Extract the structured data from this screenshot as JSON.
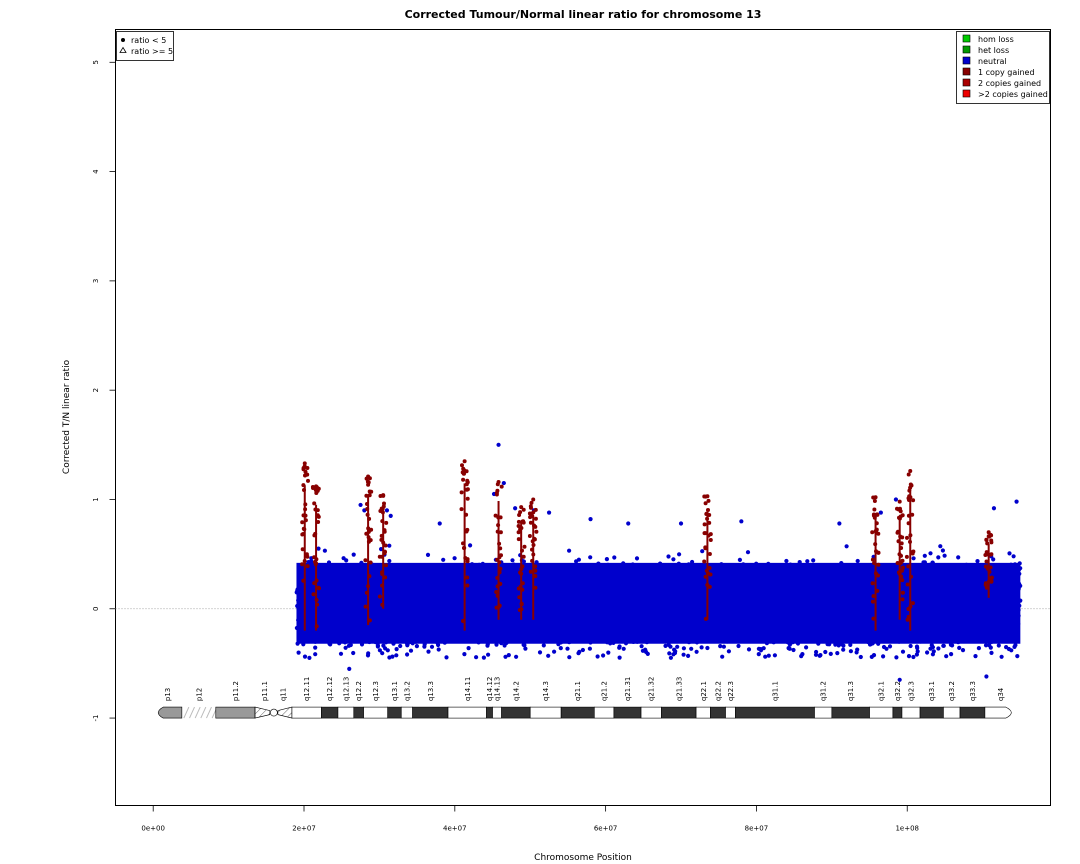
{
  "chart_data": {
    "type": "scatter",
    "title": "Corrected Tumour/Normal linear ratio for chromosome  13",
    "xlabel": "Chromosome Position",
    "ylabel": "Corrected T/N linear ratio",
    "xlim": [
      -5000000,
      119000000
    ],
    "ylim": [
      -1.8,
      5.3
    ],
    "x_ticks": [
      {
        "value": 0,
        "label": "0e+00"
      },
      {
        "value": 20000000,
        "label": "2e+07"
      },
      {
        "value": 40000000,
        "label": "4e+07"
      },
      {
        "value": 60000000,
        "label": "6e+07"
      },
      {
        "value": 80000000,
        "label": "8e+07"
      },
      {
        "value": 100000000,
        "label": "1e+08"
      }
    ],
    "y_ticks": [
      {
        "value": -1,
        "label": "-1"
      },
      {
        "value": 0,
        "label": "0"
      },
      {
        "value": 1,
        "label": "1"
      },
      {
        "value": 2,
        "label": "2"
      },
      {
        "value": 3,
        "label": "3"
      },
      {
        "value": 4,
        "label": "4"
      },
      {
        "value": 5,
        "label": "5"
      }
    ],
    "reference_line": 0,
    "shape_legend": {
      "position": "top-left",
      "items": [
        {
          "symbol": "dot",
          "label": "ratio < 5"
        },
        {
          "symbol": "triangle",
          "label": "ratio >= 5"
        }
      ]
    },
    "color_legend": {
      "position": "top-right",
      "items": [
        {
          "label": "hom loss",
          "color": "#00CC00"
        },
        {
          "label": "het loss",
          "color": "#009900"
        },
        {
          "label": "neutral",
          "color": "#0000CC"
        },
        {
          "label": "1 copy gained",
          "color": "#880000"
        },
        {
          "label": "2 copies gained",
          "color": "#AA0000"
        },
        {
          "label": ">2 copies gained",
          "color": "#EE0000"
        }
      ]
    },
    "neutral_cloud": {
      "color": "#0000CC",
      "x_range": [
        19000000,
        115000000
      ],
      "y_center": 0,
      "typical_range": [
        -0.45,
        0.6
      ],
      "outlier_points": [
        {
          "x": 45800000,
          "y": 1.5
        },
        {
          "x": 45200000,
          "y": 1.05
        },
        {
          "x": 46500000,
          "y": 1.15
        },
        {
          "x": 27500000,
          "y": 0.95
        },
        {
          "x": 28000000,
          "y": 0.9
        },
        {
          "x": 31000000,
          "y": 0.9
        },
        {
          "x": 31500000,
          "y": 0.85
        },
        {
          "x": 38000000,
          "y": 0.78
        },
        {
          "x": 48000000,
          "y": 0.92
        },
        {
          "x": 50500000,
          "y": 0.9
        },
        {
          "x": 52500000,
          "y": 0.88
        },
        {
          "x": 58000000,
          "y": 0.82
        },
        {
          "x": 63000000,
          "y": 0.78
        },
        {
          "x": 70000000,
          "y": 0.78
        },
        {
          "x": 78000000,
          "y": 0.8
        },
        {
          "x": 91000000,
          "y": 0.78
        },
        {
          "x": 96500000,
          "y": 0.88
        },
        {
          "x": 98500000,
          "y": 1.0
        },
        {
          "x": 111500000,
          "y": 0.92
        },
        {
          "x": 114500000,
          "y": 0.98
        },
        {
          "x": 26000000,
          "y": -0.55
        },
        {
          "x": 110500000,
          "y": -0.62
        },
        {
          "x": 99000000,
          "y": -0.65
        }
      ]
    },
    "gained_segments": [
      {
        "x": 20100000,
        "y_min": -0.2,
        "y_max": 1.33,
        "color": "#880000"
      },
      {
        "x": 21600000,
        "y_min": -0.2,
        "y_max": 1.12,
        "color": "#880000"
      },
      {
        "x": 28500000,
        "y_min": -0.15,
        "y_max": 1.21,
        "color": "#880000"
      },
      {
        "x": 30500000,
        "y_min": 0.0,
        "y_max": 1.04,
        "color": "#880000"
      },
      {
        "x": 41300000,
        "y_min": -0.2,
        "y_max": 1.35,
        "color": "#880000"
      },
      {
        "x": 45800000,
        "y_min": -0.1,
        "y_max": 1.16,
        "color": "#880000"
      },
      {
        "x": 48800000,
        "y_min": -0.1,
        "y_max": 0.93,
        "color": "#880000"
      },
      {
        "x": 50400000,
        "y_min": -0.1,
        "y_max": 1.0,
        "color": "#880000"
      },
      {
        "x": 73500000,
        "y_min": -0.1,
        "y_max": 1.03,
        "color": "#880000"
      },
      {
        "x": 95800000,
        "y_min": -0.2,
        "y_max": 1.02,
        "color": "#880000"
      },
      {
        "x": 99000000,
        "y_min": -0.1,
        "y_max": 0.98,
        "color": "#880000"
      },
      {
        "x": 100400000,
        "y_min": -0.2,
        "y_max": 1.26,
        "color": "#880000"
      },
      {
        "x": 110800000,
        "y_min": 0.1,
        "y_max": 0.7,
        "color": "#880000"
      }
    ],
    "ideogram": {
      "y": -0.95,
      "bands": [
        {
          "name": "p13",
          "start": 0,
          "end": 3800000,
          "stain": "stalk"
        },
        {
          "name": "p12",
          "start": 3800000,
          "end": 8300000,
          "stain": "hatched"
        },
        {
          "name": "p11.2",
          "start": 8300000,
          "end": 13500000,
          "stain": "gpos-light"
        },
        {
          "name": "p11.1",
          "start": 13500000,
          "end": 16000000,
          "stain": "acen"
        },
        {
          "name": "q11",
          "start": 16000000,
          "end": 18400000,
          "stain": "acen"
        },
        {
          "name": "q12.11",
          "start": 18400000,
          "end": 22300000,
          "stain": "gneg"
        },
        {
          "name": "q12.12",
          "start": 22300000,
          "end": 24500000,
          "stain": "gpos"
        },
        {
          "name": "q12.13",
          "start": 24500000,
          "end": 26600000,
          "stain": "gneg"
        },
        {
          "name": "q12.2",
          "start": 26600000,
          "end": 27900000,
          "stain": "gpos"
        },
        {
          "name": "q12.3",
          "start": 27900000,
          "end": 31100000,
          "stain": "gneg"
        },
        {
          "name": "q13.1",
          "start": 31100000,
          "end": 32900000,
          "stain": "gpos"
        },
        {
          "name": "q13.2",
          "start": 32900000,
          "end": 34400000,
          "stain": "gneg"
        },
        {
          "name": "q13.3",
          "start": 34400000,
          "end": 39100000,
          "stain": "gpos"
        },
        {
          "name": "q14.11",
          "start": 39100000,
          "end": 44200000,
          "stain": "gneg"
        },
        {
          "name": "q14.12",
          "start": 44200000,
          "end": 45000000,
          "stain": "gpos"
        },
        {
          "name": "q14.13",
          "start": 45000000,
          "end": 46200000,
          "stain": "gneg"
        },
        {
          "name": "q14.2",
          "start": 46200000,
          "end": 50000000,
          "stain": "gpos"
        },
        {
          "name": "q14.3",
          "start": 50000000,
          "end": 54100000,
          "stain": "gneg"
        },
        {
          "name": "q21.1",
          "start": 54100000,
          "end": 58500000,
          "stain": "gpos"
        },
        {
          "name": "q21.2",
          "start": 58500000,
          "end": 61100000,
          "stain": "gneg"
        },
        {
          "name": "q21.31",
          "start": 61100000,
          "end": 64700000,
          "stain": "gpos"
        },
        {
          "name": "q21.32",
          "start": 64700000,
          "end": 67400000,
          "stain": "gneg"
        },
        {
          "name": "q21.33",
          "start": 67400000,
          "end": 72000000,
          "stain": "gpos"
        },
        {
          "name": "q22.1",
          "start": 72000000,
          "end": 73900000,
          "stain": "gneg"
        },
        {
          "name": "q22.2",
          "start": 73900000,
          "end": 75900000,
          "stain": "gpos"
        },
        {
          "name": "q22.3",
          "start": 75900000,
          "end": 77200000,
          "stain": "gneg"
        },
        {
          "name": "q31.1",
          "start": 77200000,
          "end": 87700000,
          "stain": "gpos"
        },
        {
          "name": "q31.2",
          "start": 87700000,
          "end": 90000000,
          "stain": "gneg"
        },
        {
          "name": "q31.3",
          "start": 90000000,
          "end": 95000000,
          "stain": "gpos"
        },
        {
          "name": "q32.1",
          "start": 95000000,
          "end": 98100000,
          "stain": "gneg"
        },
        {
          "name": "q32.2",
          "start": 98100000,
          "end": 99300000,
          "stain": "gpos"
        },
        {
          "name": "q32.3",
          "start": 99300000,
          "end": 101700000,
          "stain": "gneg"
        },
        {
          "name": "q33.1",
          "start": 101700000,
          "end": 104800000,
          "stain": "gpos"
        },
        {
          "name": "q33.2",
          "start": 104800000,
          "end": 107000000,
          "stain": "gneg"
        },
        {
          "name": "q33.3",
          "start": 107000000,
          "end": 110300000,
          "stain": "gpos"
        },
        {
          "name": "q34",
          "start": 110300000,
          "end": 114400000,
          "stain": "gneg"
        }
      ]
    }
  }
}
